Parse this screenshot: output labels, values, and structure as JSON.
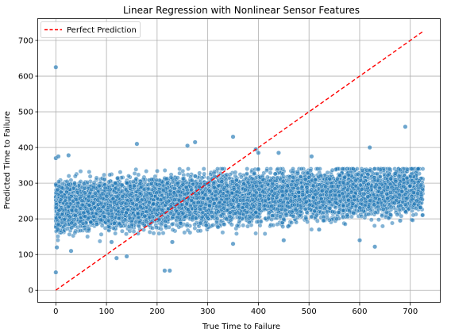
{
  "chart_data": {
    "type": "scatter",
    "title": "Linear Regression with Nonlinear Sensor Features",
    "xlabel": "True Time to Failure",
    "ylabel": "Predicted Time to Failure",
    "xlim": [
      -35,
      760
    ],
    "ylim": [
      -35,
      760
    ],
    "xticks": [
      0,
      100,
      200,
      300,
      400,
      500,
      600,
      700
    ],
    "yticks": [
      0,
      100,
      200,
      300,
      400,
      500,
      600,
      700
    ],
    "grid": true,
    "legend_position": "top-left",
    "colors": {
      "points": "#1f77b4",
      "reference_line": "#ff0000"
    },
    "series": [
      {
        "type": "scatter",
        "point_count_approx": 8000,
        "sample_points": [
          [
            0,
            625
          ],
          [
            0,
            50
          ],
          [
            0,
            370
          ],
          [
            5,
            375
          ],
          [
            25,
            378
          ],
          [
            2,
            120
          ],
          [
            30,
            110
          ],
          [
            120,
            90
          ],
          [
            140,
            95
          ],
          [
            160,
            410
          ],
          [
            215,
            55
          ],
          [
            225,
            55
          ],
          [
            260,
            405
          ],
          [
            275,
            415
          ],
          [
            350,
            430
          ],
          [
            395,
            395
          ],
          [
            400,
            385
          ],
          [
            440,
            385
          ],
          [
            505,
            375
          ],
          [
            620,
            400
          ],
          [
            630,
            122
          ],
          [
            690,
            458
          ],
          [
            230,
            135
          ],
          [
            450,
            140
          ],
          [
            600,
            140
          ],
          [
            720,
            232
          ],
          [
            350,
            130
          ],
          [
            110,
            135
          ],
          [
            520,
            170
          ],
          [
            680,
            195
          ]
        ],
        "band_mean": {
          "x": [
            0,
            100,
            200,
            300,
            400,
            500,
            600,
            700,
            725
          ],
          "y": [
            235,
            242,
            248,
            255,
            262,
            268,
            275,
            283,
            285
          ]
        },
        "band_spread_sd": 42
      },
      {
        "name": "Perfect Prediction",
        "type": "line",
        "style": "dashed",
        "x": [
          0,
          725
        ],
        "y": [
          0,
          725
        ]
      }
    ]
  }
}
